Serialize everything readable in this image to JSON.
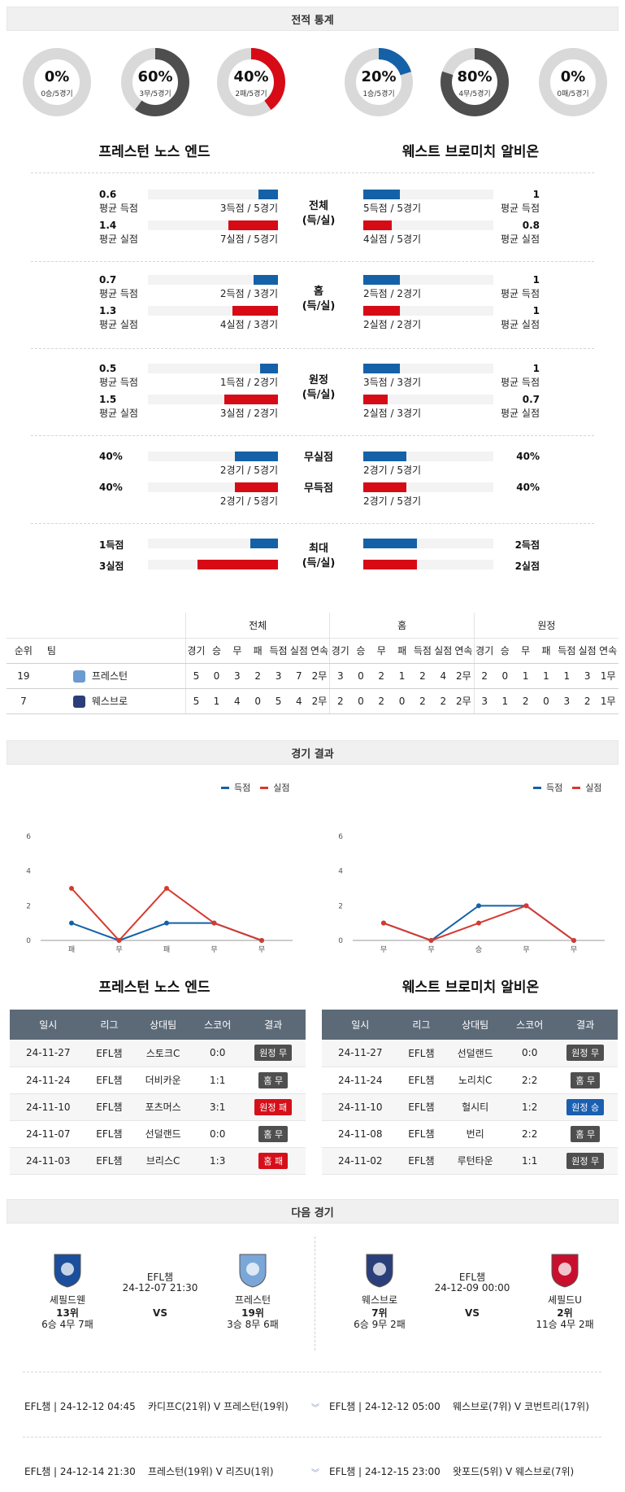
{
  "sections": {
    "record_stats": "전적 통계",
    "match_results": "경기 결과",
    "next_match": "다음 경기"
  },
  "donuts": [
    {
      "pct": 0,
      "label": "0%",
      "sub": "0승/5경기",
      "color": "#d60b16"
    },
    {
      "pct": 60,
      "label": "60%",
      "sub": "3무/5경기",
      "color": "#4e4e4e"
    },
    {
      "pct": 40,
      "label": "40%",
      "sub": "2패/5경기",
      "color": "#d60b16"
    },
    {
      "pct": 20,
      "label": "20%",
      "sub": "1승/5경기",
      "color": "#1461a8"
    },
    {
      "pct": 80,
      "label": "80%",
      "sub": "4무/5경기",
      "color": "#4e4e4e"
    },
    {
      "pct": 0,
      "label": "0%",
      "sub": "0패/5경기",
      "color": "#d60b16"
    }
  ],
  "teams": {
    "home": "프레스턴 노스 엔드",
    "away": "웨스트 브로미치 알비온"
  },
  "goal_blocks": [
    {
      "category": "전체\n(득/실)",
      "rows": [
        {
          "lv": "0.6",
          "ll": "평균 득점",
          "lfrac": 0.15,
          "lcap": "3득점 / 5경기",
          "rv": "1",
          "rl": "평균 득점",
          "rfrac": 0.28,
          "rcap": "5득점 / 5경기",
          "color": "blue"
        },
        {
          "lv": "1.4",
          "ll": "평균 실점",
          "lfrac": 0.38,
          "lcap": "7실점 / 5경기",
          "rv": "0.8",
          "rl": "평균 실점",
          "rfrac": 0.22,
          "rcap": "4실점 / 5경기",
          "color": "red"
        }
      ]
    },
    {
      "category": "홈\n(득/실)",
      "rows": [
        {
          "lv": "0.7",
          "ll": "평균 득점",
          "lfrac": 0.19,
          "lcap": "2득점 / 3경기",
          "rv": "1",
          "rl": "평균 득점",
          "rfrac": 0.28,
          "rcap": "2득점 / 2경기",
          "color": "blue"
        },
        {
          "lv": "1.3",
          "ll": "평균 실점",
          "lfrac": 0.35,
          "lcap": "4실점 / 3경기",
          "rv": "1",
          "rl": "평균 실점",
          "rfrac": 0.28,
          "rcap": "2실점 / 2경기",
          "color": "red"
        }
      ]
    },
    {
      "category": "원정\n(득/실)",
      "rows": [
        {
          "lv": "0.5",
          "ll": "평균 득점",
          "lfrac": 0.14,
          "lcap": "1득점 / 2경기",
          "rv": "1",
          "rl": "평균 득점",
          "rfrac": 0.28,
          "rcap": "3득점 / 3경기",
          "color": "blue"
        },
        {
          "lv": "1.5",
          "ll": "평균 실점",
          "lfrac": 0.41,
          "lcap": "3실점 / 2경기",
          "rv": "0.7",
          "rl": "평균 실점",
          "rfrac": 0.19,
          "rcap": "2실점 / 3경기",
          "color": "red"
        }
      ]
    }
  ],
  "clean_block": [
    {
      "lv": "40%",
      "lfrac": 0.33,
      "lcap": "2경기 / 5경기",
      "cat": "무실점",
      "rv": "40%",
      "rfrac": 0.33,
      "rcap": "2경기 / 5경기",
      "color": "blue"
    },
    {
      "lv": "40%",
      "lfrac": 0.33,
      "lcap": "2경기 / 5경기",
      "cat": "무득점",
      "rv": "40%",
      "rfrac": 0.33,
      "rcap": "2경기 / 5경기",
      "color": "red"
    }
  ],
  "max_block": {
    "category": "최대\n(득/실)",
    "rows": [
      {
        "lv": "1득점",
        "lfrac": 0.21,
        "rv": "2득점",
        "rfrac": 0.41,
        "color": "blue"
      },
      {
        "lv": "3실점",
        "lfrac": 0.62,
        "rv": "2실점",
        "rfrac": 0.41,
        "color": "red"
      }
    ]
  },
  "standings": {
    "groups": [
      "전체",
      "홈",
      "원정"
    ],
    "headers": [
      "순위",
      "팀",
      "경기",
      "승",
      "무",
      "패",
      "득점",
      "실점",
      "연속",
      "경기",
      "승",
      "무",
      "패",
      "득점",
      "실점",
      "연속",
      "경기",
      "승",
      "무",
      "패",
      "득점",
      "실점",
      "연속"
    ],
    "rows": [
      {
        "cells": [
          "19",
          "프레스턴",
          "5",
          "0",
          "3",
          "2",
          "3",
          "7",
          "2무",
          "3",
          "0",
          "2",
          "1",
          "2",
          "4",
          "2무",
          "2",
          "0",
          "1",
          "1",
          "1",
          "3",
          "1무"
        ],
        "crest": "#6a9bd1"
      },
      {
        "cells": [
          "7",
          "웨스브로",
          "5",
          "1",
          "4",
          "0",
          "5",
          "4",
          "2무",
          "2",
          "0",
          "2",
          "0",
          "2",
          "2",
          "2무",
          "3",
          "1",
          "2",
          "0",
          "3",
          "2",
          "1무"
        ],
        "crest": "#2a3f7a"
      }
    ]
  },
  "chart_data": [
    {
      "type": "line",
      "categories": [
        "패",
        "무",
        "패",
        "무",
        "무"
      ],
      "series": [
        {
          "name": "득점",
          "values": [
            1,
            0,
            1,
            1,
            0
          ],
          "color": "#1461a8"
        },
        {
          "name": "실점",
          "values": [
            3,
            0,
            3,
            1,
            0
          ],
          "color": "#d63a2f"
        }
      ],
      "yticks": [
        "0",
        "2",
        "4",
        "6"
      ],
      "ylim": [
        0,
        6
      ]
    },
    {
      "type": "line",
      "categories": [
        "무",
        "무",
        "승",
        "무",
        "무"
      ],
      "series": [
        {
          "name": "득점",
          "values": [
            1,
            0,
            2,
            2,
            0
          ],
          "color": "#1461a8"
        },
        {
          "name": "실점",
          "values": [
            1,
            0,
            1,
            2,
            0
          ],
          "color": "#d63a2f"
        }
      ],
      "yticks": [
        "0",
        "2",
        "4",
        "6"
      ],
      "ylim": [
        0,
        6
      ]
    }
  ],
  "results": {
    "headers": [
      "일시",
      "리그",
      "상대팀",
      "스코어",
      "결과"
    ],
    "home": [
      {
        "date": "24-11-27",
        "league": "EFL챔",
        "opp": "스토크C",
        "score": "0:0",
        "res": "원정 무",
        "style": "gray"
      },
      {
        "date": "24-11-24",
        "league": "EFL챔",
        "opp": "더비카운",
        "score": "1:1",
        "res": "홈 무",
        "style": "gray"
      },
      {
        "date": "24-11-10",
        "league": "EFL챔",
        "opp": "포츠머스",
        "score": "3:1",
        "res": "원정 패",
        "style": "red"
      },
      {
        "date": "24-11-07",
        "league": "EFL챔",
        "opp": "선덜랜드",
        "score": "0:0",
        "res": "홈 무",
        "style": "gray"
      },
      {
        "date": "24-11-03",
        "league": "EFL챔",
        "opp": "브리스C",
        "score": "1:3",
        "res": "홈 패",
        "style": "red"
      }
    ],
    "away": [
      {
        "date": "24-11-27",
        "league": "EFL챔",
        "opp": "선덜랜드",
        "score": "0:0",
        "res": "원정 무",
        "style": "gray"
      },
      {
        "date": "24-11-24",
        "league": "EFL챔",
        "opp": "노리치C",
        "score": "2:2",
        "res": "홈 무",
        "style": "gray"
      },
      {
        "date": "24-11-10",
        "league": "EFL챔",
        "opp": "헐시티",
        "score": "1:2",
        "res": "원정 승",
        "style": "blue"
      },
      {
        "date": "24-11-08",
        "league": "EFL챔",
        "opp": "번리",
        "score": "2:2",
        "res": "홈 무",
        "style": "gray"
      },
      {
        "date": "24-11-02",
        "league": "EFL챔",
        "opp": "루턴타운",
        "score": "1:1",
        "res": "원정 무",
        "style": "gray"
      }
    ]
  },
  "next": [
    {
      "league": "EFL챔",
      "datetime": "24-12-07 21:30",
      "vs": "VS",
      "t1": {
        "name": "셰필드웬",
        "rank": "13위",
        "record": "6승 4무 7패",
        "color": "#1b4f9c"
      },
      "t2": {
        "name": "프레스턴",
        "rank": "19위",
        "record": "3승 8무 6패",
        "color": "#7aa7d8"
      }
    },
    {
      "league": "EFL챔",
      "datetime": "24-12-09 00:00",
      "vs": "VS",
      "t1": {
        "name": "웨스브로",
        "rank": "7위",
        "record": "6승 9무 2패",
        "color": "#2a3f7a"
      },
      "t2": {
        "name": "셰필드U",
        "rank": "2위",
        "record": "11승 4무 2패",
        "color": "#c8102e"
      }
    }
  ],
  "upcoming": [
    {
      "left": "EFL챔 | 24-12-12 04:45",
      "leftmatch": "카디프C(21위) V 프레스턴(19위)",
      "right": "EFL챔 | 24-12-12 05:00",
      "rightmatch": "웨스브로(7위) V 코번트리(17위)"
    },
    {
      "left": "EFL챔 | 24-12-14 21:30",
      "leftmatch": "프레스턴(19위) V 리즈U(1위)",
      "right": "EFL챔 | 24-12-15 23:00",
      "rightmatch": "왓포드(5위) V 웨스브로(7위)"
    }
  ]
}
